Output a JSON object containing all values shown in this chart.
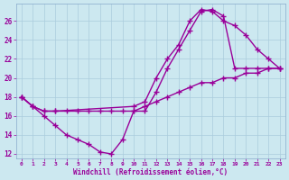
{
  "line1": {
    "x": [
      0,
      1,
      2,
      3,
      4,
      5,
      6,
      7,
      8,
      9,
      10,
      11,
      12,
      13,
      14,
      15,
      16,
      17,
      18,
      19,
      20,
      21,
      22,
      23
    ],
    "y": [
      18.0,
      17.0,
      16.0,
      15.0,
      14.0,
      13.5,
      13.0,
      12.2,
      12.0,
      13.5,
      16.5,
      16.5,
      18.5,
      21.0,
      23.0,
      25.0,
      27.0,
      27.2,
      26.5,
      21.0,
      21.0,
      21.0,
      21.0,
      21.0
    ]
  },
  "line2": {
    "x": [
      0,
      1,
      2,
      3,
      10,
      11,
      12,
      13,
      14,
      15,
      16,
      17,
      18,
      19,
      20,
      21,
      22,
      23
    ],
    "y": [
      18.0,
      17.0,
      16.5,
      16.5,
      17.0,
      17.5,
      20.0,
      22.0,
      23.5,
      26.0,
      27.2,
      27.0,
      26.0,
      25.5,
      24.5,
      23.0,
      22.0,
      21.0
    ]
  },
  "line3": {
    "x": [
      0,
      1,
      2,
      3,
      4,
      5,
      6,
      7,
      8,
      9,
      10,
      11,
      12,
      13,
      14,
      15,
      16,
      17,
      18,
      19,
      20,
      21,
      22,
      23
    ],
    "y": [
      18.0,
      17.0,
      16.5,
      16.5,
      16.5,
      16.5,
      16.5,
      16.5,
      16.5,
      16.5,
      16.5,
      17.0,
      17.5,
      18.0,
      18.5,
      19.0,
      19.5,
      19.5,
      20.0,
      20.0,
      20.5,
      20.5,
      21.0,
      21.0
    ]
  },
  "color": "#990099",
  "bg_color": "#cce8f0",
  "plot_bg": "#cce8f0",
  "grid_color": "#aaccdd",
  "xlabel": "Windchill (Refroidissement éolien,°C)",
  "xlim": [
    -0.5,
    23.5
  ],
  "ylim": [
    11.5,
    27.8
  ],
  "yticks": [
    12,
    14,
    16,
    18,
    20,
    22,
    24,
    26
  ],
  "xticks": [
    0,
    1,
    2,
    3,
    4,
    5,
    6,
    7,
    8,
    9,
    10,
    11,
    12,
    13,
    14,
    15,
    16,
    17,
    18,
    19,
    20,
    21,
    22,
    23
  ],
  "marker": "+",
  "markersize": 4,
  "linewidth": 1.0
}
